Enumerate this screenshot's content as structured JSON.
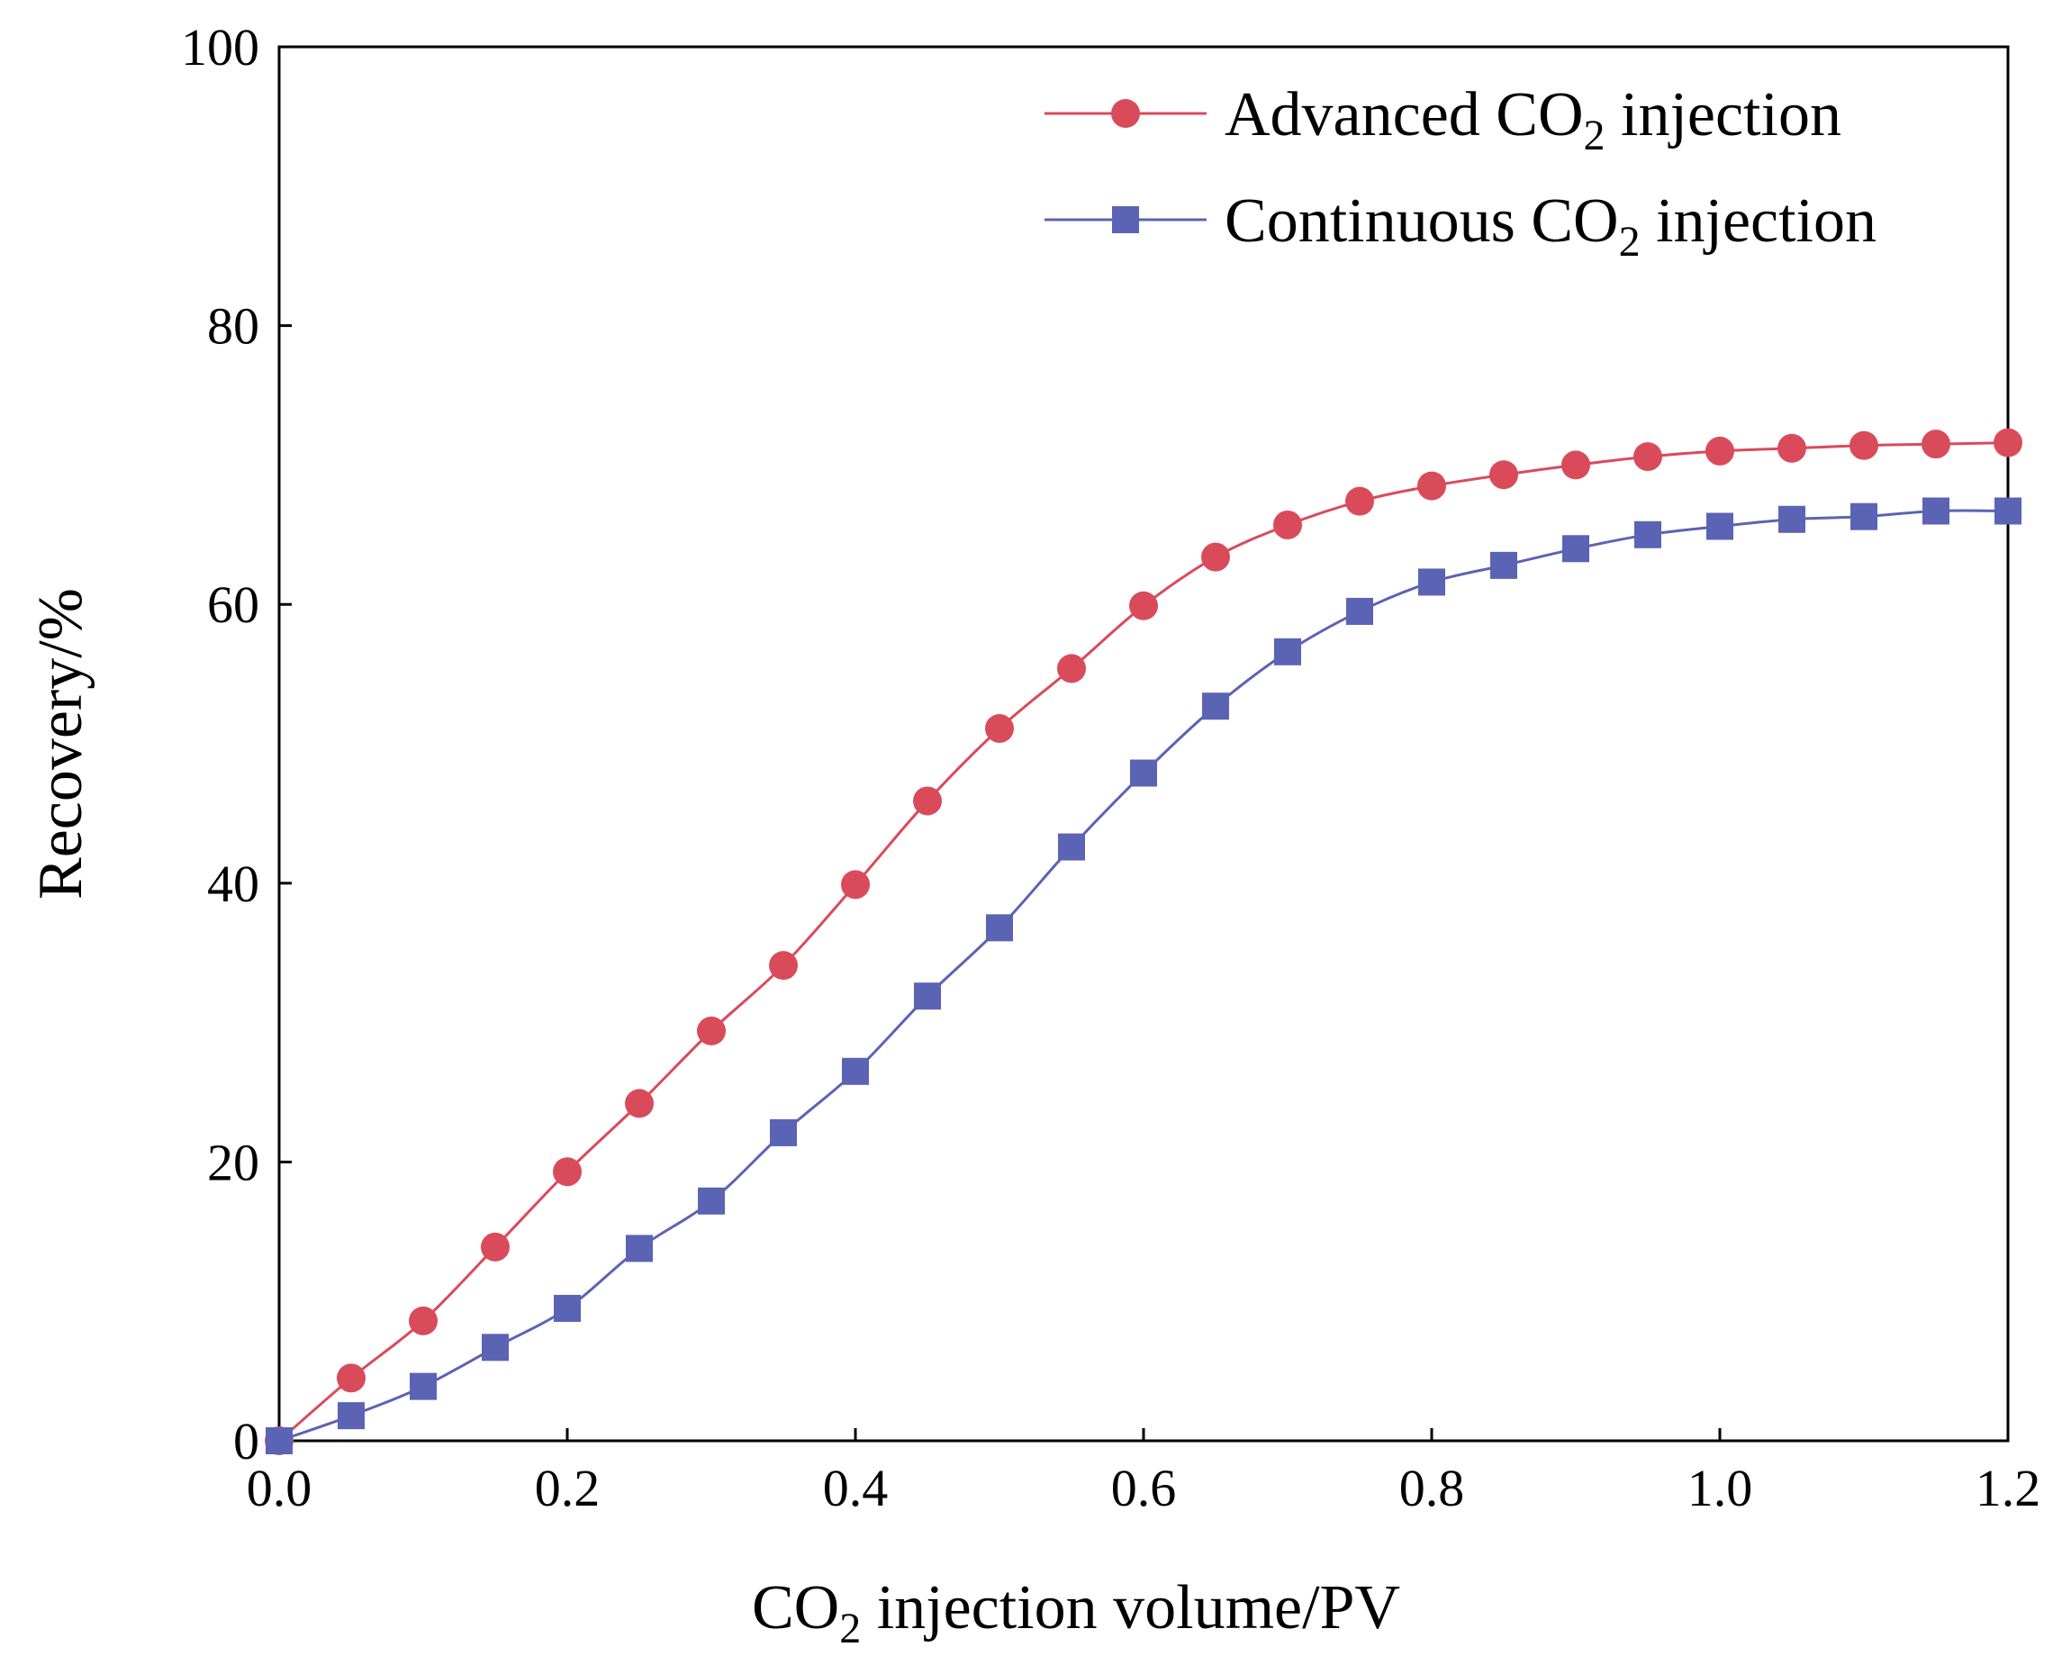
{
  "colors": {
    "series_1": "#d94b5b",
    "series_2": "#5b63b5",
    "axis": "#000000"
  },
  "chart_data": {
    "type": "line",
    "title": "",
    "xlabel": {
      "main": "CO",
      "sub": "2",
      "rest": " injection volume/PV"
    },
    "ylabel": "Recovery/%",
    "xlim": [
      0,
      1.2
    ],
    "ylim": [
      0,
      100
    ],
    "x_ticks": [
      "0.0",
      "0.2",
      "0.4",
      "0.6",
      "0.8",
      "1.0",
      "1.2"
    ],
    "y_ticks": [
      "0",
      "20",
      "40",
      "60",
      "80",
      "100"
    ],
    "x": [
      0.0,
      0.05,
      0.1,
      0.15,
      0.2,
      0.25,
      0.3,
      0.35,
      0.4,
      0.45,
      0.5,
      0.55,
      0.6,
      0.65,
      0.7,
      0.75,
      0.8,
      0.85,
      0.9,
      0.95,
      1.0,
      1.05,
      1.1,
      1.15,
      1.2
    ],
    "legend_position": "top-right",
    "series": [
      {
        "name": {
          "main": "Advanced CO",
          "sub": "2",
          "rest": " injection"
        },
        "marker": "circle",
        "color": "#d94b5b",
        "values": [
          0.0,
          4.5,
          8.6,
          13.9,
          19.3,
          24.2,
          29.4,
          34.1,
          39.9,
          45.9,
          51.1,
          55.4,
          59.9,
          63.4,
          65.7,
          67.4,
          68.5,
          69.3,
          70.0,
          70.6,
          71.0,
          71.2,
          71.4,
          71.5,
          71.6
        ]
      },
      {
        "name": {
          "main": "Continuous CO",
          "sub": "2",
          "rest": " injection"
        },
        "marker": "square",
        "color": "#5b63b5",
        "values": [
          0.0,
          1.8,
          3.9,
          6.7,
          9.5,
          13.8,
          17.2,
          22.1,
          26.5,
          31.9,
          36.8,
          42.6,
          47.9,
          52.7,
          56.6,
          59.5,
          61.6,
          62.8,
          64.0,
          65.0,
          65.6,
          66.1,
          66.3,
          66.7,
          66.7
        ]
      }
    ]
  }
}
